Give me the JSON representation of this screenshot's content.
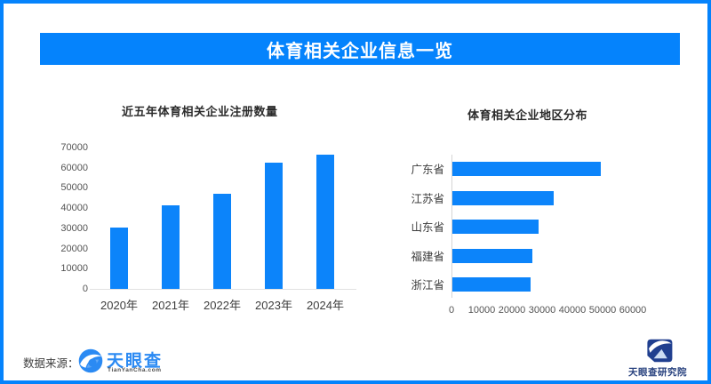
{
  "banner": {
    "title": "体育相关企业信息一览"
  },
  "footer": {
    "source_label": "数据来源：",
    "tianyancha_logo_text": "天眼查",
    "tianyancha_logo_sub": "TianYanCha.com",
    "research_logo_text": "天眼查研究院"
  },
  "colors": {
    "accent_blue": "#0583fc",
    "bar_blue": "#0c84fa",
    "tianyancha_blue": "#2b8af3",
    "research_navy": "#203f8f"
  },
  "chart_data": [
    {
      "type": "bar",
      "orientation": "vertical",
      "title": "近五年体育相关企业注册数量",
      "categories": [
        "2020年",
        "2021年",
        "2022年",
        "2023年",
        "2024年"
      ],
      "values": [
        30500,
        41500,
        47000,
        62500,
        66500
      ],
      "ylabel": "",
      "xlabel": "",
      "ylim": [
        0,
        70000
      ],
      "yticks": [
        0,
        10000,
        20000,
        30000,
        40000,
        50000,
        60000,
        70000
      ],
      "grid": false,
      "legend": "none"
    },
    {
      "type": "bar",
      "orientation": "horizontal",
      "title": "体育相关企业地区分布",
      "categories": [
        "广东省",
        "江苏省",
        "山东省",
        "福建省",
        "浙江省"
      ],
      "values": [
        49000,
        33500,
        28500,
        26500,
        26000
      ],
      "ylabel": "",
      "xlabel": "",
      "xlim": [
        0,
        60000
      ],
      "xticks": [
        0,
        10000,
        20000,
        30000,
        40000,
        50000,
        60000
      ],
      "grid": false,
      "legend": "none"
    }
  ]
}
